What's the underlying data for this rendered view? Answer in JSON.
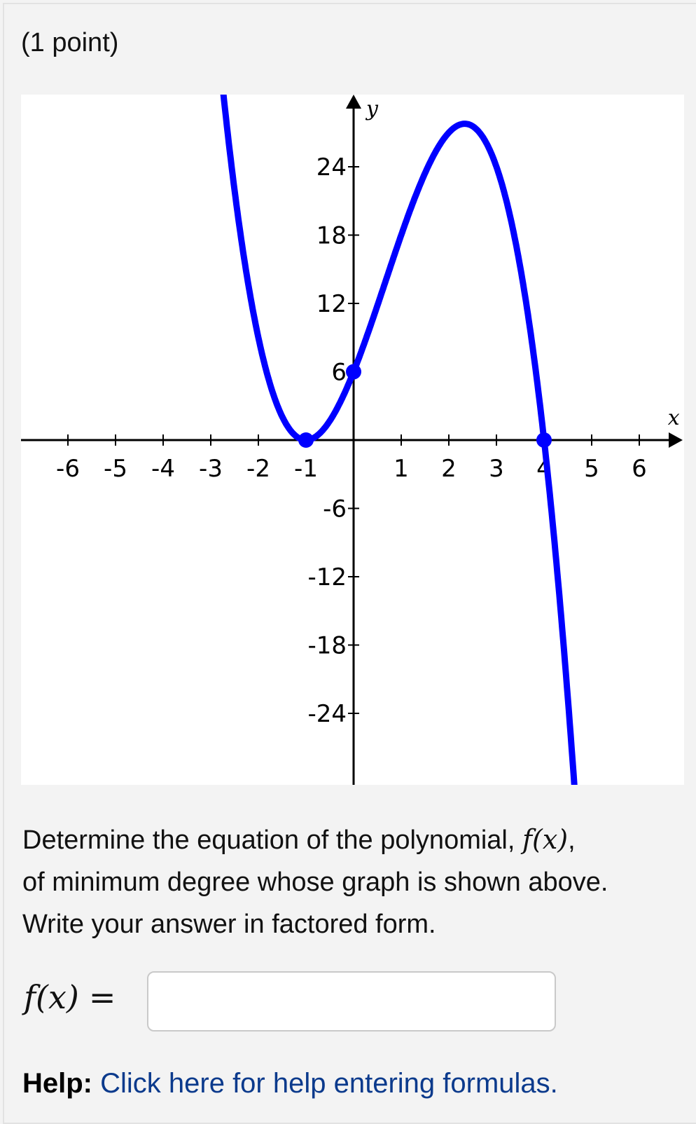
{
  "points_label": "(1 point)",
  "question": {
    "line1_pre": "Determine the equation of the polynomial, ",
    "func": "f(x)",
    "line1_post": ",",
    "line2": "of minimum degree whose graph is shown above.",
    "line3": "Write your answer in factored form."
  },
  "answer": {
    "label": "f(x)",
    "equals": "=",
    "value": "",
    "placeholder": ""
  },
  "help": {
    "label": "Help:",
    "link": "Click here for help entering formulas."
  },
  "chart_data": {
    "type": "line",
    "xlabel": "x",
    "ylabel": "y",
    "xlim": [
      -7,
      7
    ],
    "ylim": [
      -30.3,
      30.3
    ],
    "x_ticks": [
      -6,
      -5,
      -4,
      -3,
      -2,
      -1,
      1,
      2,
      3,
      4,
      5,
      6
    ],
    "y_ticks": [
      -24,
      -18,
      -12,
      -6,
      6,
      12,
      18,
      24
    ],
    "x_tick_labels": [
      "-6",
      "-5",
      "-4",
      "-3",
      "-2",
      "-1",
      "1",
      "2",
      "3",
      "4",
      "5",
      "6"
    ],
    "y_tick_labels": [
      "-24",
      "-18",
      "-12",
      "-6",
      "6",
      "12",
      "18",
      "24"
    ],
    "curve": "cubic with double root at x=-1, root at x=4, y-intercept 6",
    "marked_points": [
      {
        "x": -1,
        "y": 0
      },
      {
        "x": 0,
        "y": 6
      },
      {
        "x": 4,
        "y": 0
      }
    ],
    "curve_color": "#0000ff",
    "grid": false
  }
}
